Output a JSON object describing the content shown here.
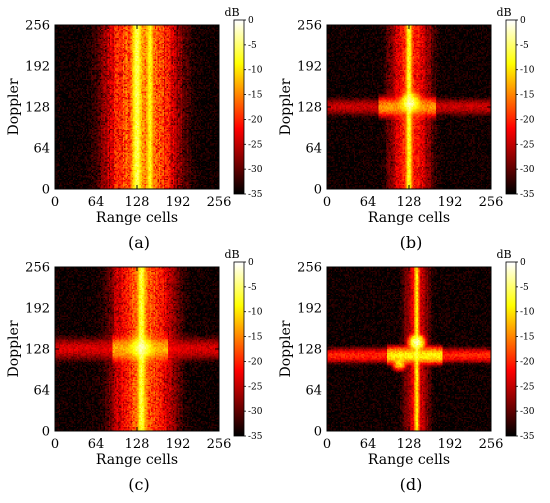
{
  "chart_data": [
    {
      "panel": "(a)",
      "type": "heatmap",
      "xlabel": "Range cells",
      "ylabel": "Doppler",
      "xlim": [
        0,
        256
      ],
      "ylim": [
        0,
        256
      ],
      "xticks": [
        0,
        64,
        128,
        192,
        256
      ],
      "yticks": [
        0,
        64,
        128,
        192,
        256
      ],
      "colorbar": {
        "unit": "dB",
        "range": [
          -35,
          0
        ],
        "ticks": [
          0,
          -5,
          -10,
          -15,
          -20,
          -25,
          -30,
          -35
        ],
        "colormap": "hot"
      },
      "features": [
        {
          "kind": "band",
          "axis": "x",
          "center": 136,
          "width": 75,
          "level_db": -15,
          "noise": 0.85
        },
        {
          "kind": "stripe",
          "axis": "x",
          "center": 128,
          "width": 10,
          "level_db": -6
        },
        {
          "kind": "stripe",
          "axis": "x",
          "center": 148,
          "width": 8,
          "level_db": -9
        }
      ]
    },
    {
      "panel": "(b)",
      "type": "heatmap",
      "xlabel": "Range cells",
      "ylabel": "Doppler",
      "xlim": [
        0,
        256
      ],
      "ylim": [
        0,
        256
      ],
      "xticks": [
        0,
        64,
        128,
        192,
        256
      ],
      "yticks": [
        0,
        64,
        128,
        192,
        256
      ],
      "colorbar": {
        "unit": "dB",
        "range": [
          -35,
          0
        ],
        "ticks": [
          0,
          -5,
          -10,
          -15,
          -20,
          -25,
          -30,
          -35
        ],
        "colormap": "hot"
      },
      "features": [
        {
          "kind": "band",
          "axis": "x",
          "center": 130,
          "width": 45,
          "level_db": -20,
          "noise": 0.75
        },
        {
          "kind": "stripe",
          "axis": "x",
          "center": 128,
          "width": 7,
          "level_db": -8
        },
        {
          "kind": "band",
          "axis": "y",
          "center": 128,
          "width": 20,
          "level_db": -14,
          "x_range": [
            80,
            170
          ]
        },
        {
          "kind": "spot",
          "x": 130,
          "y": 135,
          "width": 18,
          "level_db": -4
        }
      ]
    },
    {
      "panel": "(c)",
      "type": "heatmap",
      "xlabel": "Range cells",
      "ylabel": "Doppler",
      "xlim": [
        0,
        256
      ],
      "ylim": [
        0,
        256
      ],
      "xticks": [
        0,
        64,
        128,
        192,
        256
      ],
      "yticks": [
        0,
        64,
        128,
        192,
        256
      ],
      "colorbar": {
        "unit": "dB",
        "range": [
          -35,
          0
        ],
        "ticks": [
          0,
          -5,
          -10,
          -15,
          -20,
          -25,
          -30,
          -35
        ],
        "colormap": "hot"
      },
      "features": [
        {
          "kind": "band",
          "axis": "x",
          "center": 138,
          "width": 65,
          "level_db": -17,
          "noise": 0.8
        },
        {
          "kind": "stripe",
          "axis": "x",
          "center": 135,
          "width": 9,
          "level_db": -7
        },
        {
          "kind": "band",
          "axis": "y",
          "center": 128,
          "width": 26,
          "level_db": -13,
          "x_range": [
            90,
            175
          ]
        },
        {
          "kind": "spot",
          "x": 135,
          "y": 130,
          "width": 22,
          "level_db": -5
        }
      ]
    },
    {
      "panel": "(d)",
      "type": "heatmap",
      "xlabel": "Range cells",
      "ylabel": "Doppler",
      "xlim": [
        0,
        256
      ],
      "ylim": [
        0,
        256
      ],
      "xticks": [
        0,
        64,
        128,
        192,
        256
      ],
      "yticks": [
        0,
        64,
        128,
        192,
        256
      ],
      "colorbar": {
        "unit": "dB",
        "range": [
          -35,
          0
        ],
        "ticks": [
          0,
          -5,
          -10,
          -15,
          -20,
          -25,
          -30,
          -35
        ],
        "colormap": "hot"
      },
      "features": [
        {
          "kind": "band",
          "axis": "x",
          "center": 140,
          "width": 30,
          "level_db": -24,
          "noise": 0.6
        },
        {
          "kind": "stripe",
          "axis": "x",
          "center": 140,
          "width": 5,
          "level_db": -9
        },
        {
          "kind": "band",
          "axis": "y",
          "center": 118,
          "width": 16,
          "level_db": -9,
          "x_range": [
            95,
            180
          ]
        },
        {
          "kind": "spot",
          "x": 140,
          "y": 138,
          "width": 14,
          "level_db": -3
        },
        {
          "kind": "spot",
          "x": 113,
          "y": 105,
          "width": 12,
          "level_db": -10
        }
      ]
    }
  ]
}
